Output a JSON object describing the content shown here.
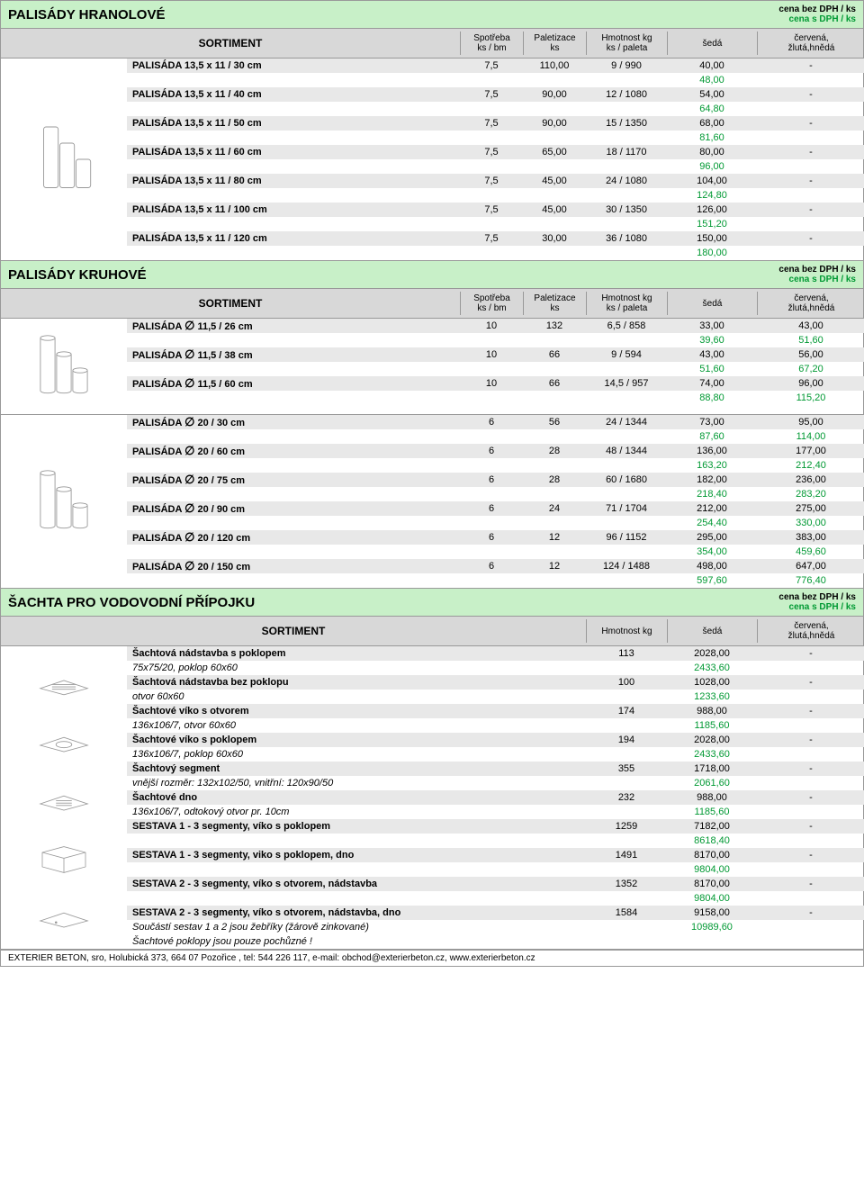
{
  "labels": {
    "sortiment": "SORTIMENT",
    "spotreba": "Spotřeba\nks / bm",
    "paletizace": "Paletizace\nks",
    "hmotnost": "Hmotnost kg\nks / paleta",
    "hmotnost_short": "Hmotnost kg",
    "seda": "šedá",
    "cervena": "červená,\nžlutá,hnědá",
    "cena_bez": "cena bez DPH / ks",
    "cena_s": "cena s DPH / ks",
    "footer": "EXTERIER BETON, sro, Holubická 373, 664 07 Pozořice , tel:  544 226 117,  e-mail: obchod@exterierbeton.cz,  www.exterierbeton.cz"
  },
  "sec1": {
    "title": "PALISÁDY  HRANOLOVÉ",
    "rows": [
      {
        "n": "PALISÁDA  13,5 x 11  / 30 cm",
        "s": "7,5",
        "p": "110,00",
        "h": "9 / 990",
        "g1": "40,00",
        "g2": "48,00",
        "r": "-"
      },
      {
        "n": "PALISÁDA  13,5 x 11  / 40 cm",
        "s": "7,5",
        "p": "90,00",
        "h": "12 / 1080",
        "g1": "54,00",
        "g2": "64,80",
        "r": "-"
      },
      {
        "n": "PALISÁDA  13,5 x 11  / 50 cm",
        "s": "7,5",
        "p": "90,00",
        "h": "15 / 1350",
        "g1": "68,00",
        "g2": "81,60",
        "r": "-"
      },
      {
        "n": "PALISÁDA  13,5 x 11  / 60 cm",
        "s": "7,5",
        "p": "65,00",
        "h": "18 / 1170",
        "g1": "80,00",
        "g2": "96,00",
        "r": "-"
      },
      {
        "n": "PALISÁDA  13,5 x 11  / 80 cm",
        "s": "7,5",
        "p": "45,00",
        "h": "24 / 1080",
        "g1": "104,00",
        "g2": "124,80",
        "r": "-"
      },
      {
        "n": "PALISÁDA  13,5 x 11  / 100 cm",
        "s": "7,5",
        "p": "45,00",
        "h": "30 / 1350",
        "g1": "126,00",
        "g2": "151,20",
        "r": "-"
      },
      {
        "n": "PALISÁDA  13,5 x 11  / 120 cm",
        "s": "7,5",
        "p": "30,00",
        "h": "36 / 1080",
        "g1": "150,00",
        "g2": "180,00",
        "r": "-"
      }
    ]
  },
  "sec2": {
    "title": "PALISÁDY  KRUHOVÉ",
    "group1": [
      {
        "n": "PALISÁDA  ∅  11,5 / 26 cm",
        "s": "10",
        "p": "132",
        "h": "6,5 / 858",
        "g1": "33,00",
        "g2": "39,60",
        "r1": "43,00",
        "r2": "51,60"
      },
      {
        "n": "PALISÁDA  ∅  11,5 / 38 cm",
        "s": "10",
        "p": "66",
        "h": "9 / 594",
        "g1": "43,00",
        "g2": "51,60",
        "r1": "56,00",
        "r2": "67,20"
      },
      {
        "n": "PALISÁDA  ∅  11,5 / 60 cm",
        "s": "10",
        "p": "66",
        "h": "14,5 / 957",
        "g1": "74,00",
        "g2": "88,80",
        "r1": "96,00",
        "r2": "115,20"
      }
    ],
    "group2": [
      {
        "n": "PALISÁDA  ∅  20 / 30 cm",
        "s": "6",
        "p": "56",
        "h": "24 / 1344",
        "g1": "73,00",
        "g2": "87,60",
        "r1": "95,00",
        "r2": "114,00"
      },
      {
        "n": "PALISÁDA  ∅  20 / 60 cm",
        "s": "6",
        "p": "28",
        "h": "48 / 1344",
        "g1": "136,00",
        "g2": "163,20",
        "r1": "177,00",
        "r2": "212,40"
      },
      {
        "n": "PALISÁDA  ∅  20 / 75 cm",
        "s": "6",
        "p": "28",
        "h": "60 / 1680",
        "g1": "182,00",
        "g2": "218,40",
        "r1": "236,00",
        "r2": "283,20"
      },
      {
        "n": "PALISÁDA  ∅  20 / 90 cm",
        "s": "6",
        "p": "24",
        "h": "71 / 1704",
        "g1": "212,00",
        "g2": "254,40",
        "r1": "275,00",
        "r2": "330,00"
      },
      {
        "n": "PALISÁDA  ∅  20 / 120 cm",
        "s": "6",
        "p": "12",
        "h": "96 / 1152",
        "g1": "295,00",
        "g2": "354,00",
        "r1": "383,00",
        "r2": "459,60"
      },
      {
        "n": "PALISÁDA  ∅  20 / 150 cm",
        "s": "6",
        "p": "12",
        "h": "124 / 1488",
        "g1": "498,00",
        "g2": "597,60",
        "r1": "647,00",
        "r2": "776,40"
      }
    ]
  },
  "sec3": {
    "title": "ŠACHTA PRO VODOVODNÍ  PŘÍPOJKU",
    "rows": [
      {
        "n": "Šachtová nádstavba s poklopem",
        "sub": "75x75/20, poklop 60x60",
        "h": "113",
        "g1": "2028,00",
        "g2": "2433,60",
        "r": "-"
      },
      {
        "n": "Šachtová nádstavba bez poklopu",
        "sub": "otvor 60x60",
        "h": "100",
        "g1": "1028,00",
        "g2": "1233,60",
        "r": "-"
      },
      {
        "n": "Šachtové víko s otvorem",
        "sub": "136x106/7, otvor 60x60",
        "h": "174",
        "g1": "988,00",
        "g2": "1185,60",
        "r": "-"
      },
      {
        "n": "Šachtové víko s poklopem",
        "sub": "136x106/7, poklop 60x60",
        "h": "194",
        "g1": "2028,00",
        "g2": "2433,60",
        "r": "-"
      },
      {
        "n": "Šachtový segment",
        "sub": "vnější rozměr: 132x102/50, vnitřní: 120x90/50",
        "h": "355",
        "g1": "1718,00",
        "g2": "2061,60",
        "r": "-"
      },
      {
        "n": "Šachtové dno",
        "sub": "136x106/7, odtokový otvor pr. 10cm",
        "h": "232",
        "g1": "988,00",
        "g2": "1185,60",
        "r": "-"
      },
      {
        "n": "SESTAVA 1 - 3 segmenty, víko s poklopem",
        "sub": "",
        "h": "1259",
        "g1": "7182,00",
        "g2": "8618,40",
        "r": "-",
        "bold_partial": true
      },
      {
        "n": "SESTAVA 1 - 3 segmenty, viko s poklopem, dno",
        "sub": "",
        "h": "1491",
        "g1": "8170,00",
        "g2": "9804,00",
        "r": "-",
        "bold_partial": true
      },
      {
        "n": "SESTAVA 2 - 3 segmenty, víko s otvorem, nádstavba",
        "sub": "",
        "h": "1352",
        "g1": "8170,00",
        "g2": "9804,00",
        "r": "-",
        "bold_partial": true
      },
      {
        "n": "SESTAVA 2 - 3 segmenty, víko s otvorem, nádstavba, dno",
        "sub": "Součástí sestav 1 a 2 jsou žebříky (žárově zinkované)",
        "h": "1584",
        "g1": "9158,00",
        "g2": "10989,60",
        "r": "-",
        "bold_partial": true
      }
    ],
    "extra_note": "Šachtové poklopy jsou pouze pochůzné !"
  }
}
